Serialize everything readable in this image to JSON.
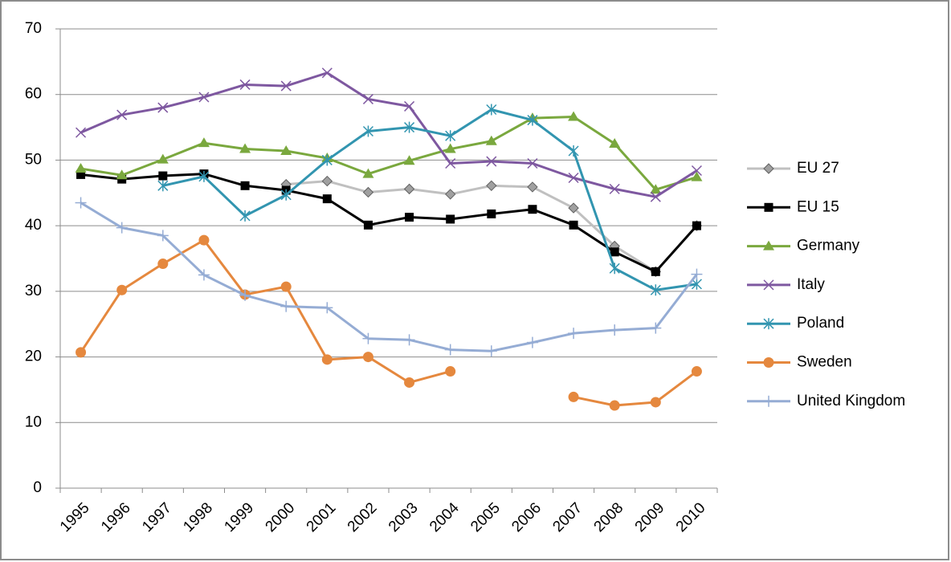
{
  "chart_data": {
    "type": "line",
    "categories": [
      "1995",
      "1996",
      "1997",
      "1998",
      "1999",
      "2000",
      "2001",
      "2002",
      "2003",
      "2004",
      "2005",
      "2006",
      "2007",
      "2008",
      "2009",
      "2010"
    ],
    "ylim": [
      0,
      70
    ],
    "yticks": [
      0,
      10,
      20,
      30,
      40,
      50,
      60,
      70
    ],
    "grid": true,
    "legend": "right",
    "series": [
      {
        "name": "EU 27",
        "color": "#c0c0c0",
        "marker": "diamond",
        "values": [
          null,
          null,
          null,
          null,
          null,
          46.3,
          46.8,
          45.1,
          45.6,
          44.8,
          46.1,
          45.9,
          42.7,
          36.9,
          33.0,
          40.0
        ]
      },
      {
        "name": "EU 15",
        "color": "#000000",
        "marker": "square",
        "values": [
          47.8,
          47.1,
          47.6,
          47.9,
          46.1,
          45.4,
          44.1,
          40.1,
          41.3,
          41.0,
          41.8,
          42.5,
          40.1,
          36.0,
          33.0,
          40.0
        ]
      },
      {
        "name": "Germany",
        "color": "#7aa83e",
        "marker": "triangle",
        "values": [
          48.7,
          47.7,
          50.1,
          52.6,
          51.7,
          51.4,
          50.3,
          47.9,
          49.9,
          51.7,
          52.9,
          56.4,
          56.6,
          52.5,
          45.5,
          47.4
        ]
      },
      {
        "name": "Italy",
        "color": "#7e58a0",
        "marker": "x",
        "values": [
          54.2,
          56.9,
          58.0,
          59.6,
          61.5,
          61.3,
          63.3,
          59.3,
          58.2,
          49.5,
          49.8,
          49.5,
          47.3,
          45.6,
          44.4,
          48.4
        ]
      },
      {
        "name": "Poland",
        "color": "#3295b0",
        "marker": "star",
        "values": [
          null,
          null,
          46.1,
          47.5,
          41.5,
          44.7,
          50.0,
          54.4,
          55.0,
          53.7,
          57.7,
          56.1,
          51.4,
          33.5,
          30.2,
          31.1
        ]
      },
      {
        "name": "Sweden",
        "color": "#e5883e",
        "marker": "circle",
        "values": [
          20.7,
          30.2,
          34.2,
          37.8,
          29.5,
          30.7,
          19.6,
          20.0,
          16.1,
          17.8,
          null,
          null,
          13.9,
          12.6,
          13.1,
          17.8
        ]
      },
      {
        "name": "United Kingdom",
        "color": "#95acd4",
        "marker": "plus",
        "values": [
          43.5,
          39.7,
          38.5,
          32.5,
          29.4,
          27.7,
          27.5,
          22.8,
          22.6,
          21.1,
          20.9,
          22.2,
          23.6,
          24.1,
          24.4,
          32.6
        ]
      }
    ]
  }
}
